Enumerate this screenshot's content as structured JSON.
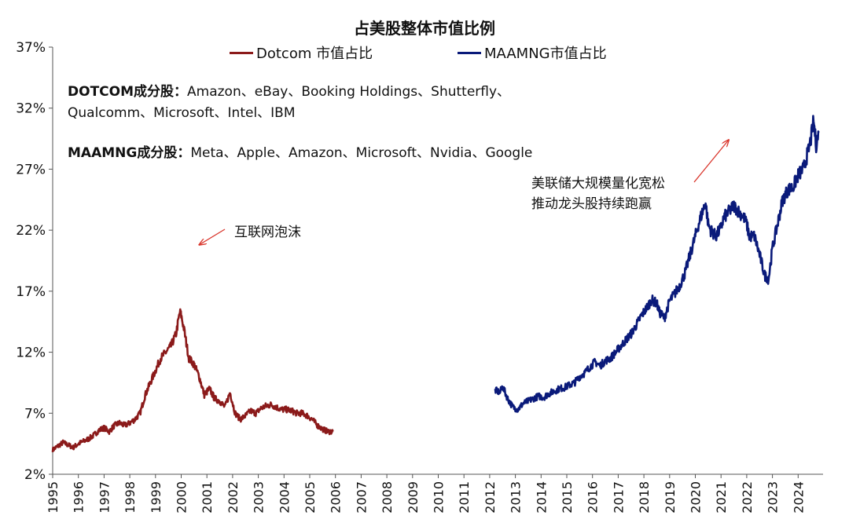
{
  "chart_data": {
    "type": "line",
    "title": "占美股整体市值比例",
    "ylim": [
      2,
      37
    ],
    "yticks": [
      "2%",
      "7%",
      "12%",
      "17%",
      "22%",
      "27%",
      "32%",
      "37%"
    ],
    "ytick_values": [
      2,
      7,
      12,
      17,
      22,
      27,
      32,
      37
    ],
    "xlim": [
      1995,
      2024.9
    ],
    "xticks": [
      "1995",
      "1996",
      "1997",
      "1998",
      "1999",
      "2000",
      "2001",
      "2002",
      "2003",
      "2004",
      "2005",
      "2006",
      "2007",
      "2008",
      "2009",
      "2010",
      "2011",
      "2012",
      "2013",
      "2014",
      "2015",
      "2016",
      "2017",
      "2018",
      "2019",
      "2020",
      "2021",
      "2022",
      "2023",
      "2024"
    ],
    "grid": false,
    "legend_position": "top",
    "series": [
      {
        "name": "Dotcom 市值占比",
        "color": "#8B1A1A",
        "x": [
          1995.0,
          1995.2,
          1995.4,
          1995.6,
          1995.8,
          1996.0,
          1996.2,
          1996.4,
          1996.6,
          1996.8,
          1997.0,
          1997.2,
          1997.4,
          1997.6,
          1997.8,
          1998.0,
          1998.2,
          1998.4,
          1998.6,
          1998.8,
          1999.0,
          1999.2,
          1999.4,
          1999.6,
          1999.8,
          1999.95,
          2000.0,
          2000.1,
          2000.3,
          2000.5,
          2000.7,
          2000.9,
          2001.1,
          2001.3,
          2001.5,
          2001.7,
          2001.9,
          2002.1,
          2002.3,
          2002.5,
          2002.7,
          2002.9,
          2003.1,
          2003.3,
          2003.5,
          2003.7,
          2003.9,
          2004.1,
          2004.3,
          2004.5,
          2004.7,
          2004.9,
          2005.1,
          2005.3,
          2005.5,
          2005.7,
          2005.9
        ],
        "values": [
          4.0,
          4.3,
          4.6,
          4.4,
          4.2,
          4.5,
          4.7,
          4.9,
          5.2,
          5.6,
          5.8,
          5.5,
          6.0,
          6.2,
          6.0,
          6.2,
          6.5,
          7.0,
          8.5,
          9.5,
          10.5,
          11.5,
          12.0,
          12.5,
          13.5,
          15.3,
          15.0,
          14.0,
          11.5,
          11.0,
          10.0,
          8.5,
          9.0,
          8.2,
          8.0,
          7.5,
          8.7,
          7.0,
          6.5,
          6.8,
          7.2,
          7.0,
          7.4,
          7.6,
          7.7,
          7.5,
          7.3,
          7.3,
          7.2,
          7.0,
          7.0,
          6.8,
          6.5,
          6.0,
          5.7,
          5.5,
          5.5
        ]
      },
      {
        "name": "MAAMNG市值占比",
        "color": "#0A1A7A",
        "x": [
          2012.2,
          2012.4,
          2012.5,
          2012.7,
          2012.9,
          2013.1,
          2013.3,
          2013.5,
          2013.7,
          2013.9,
          2014.1,
          2014.3,
          2014.5,
          2014.7,
          2014.9,
          2015.1,
          2015.3,
          2015.5,
          2015.7,
          2015.9,
          2016.1,
          2016.3,
          2016.5,
          2016.7,
          2016.9,
          2017.1,
          2017.3,
          2017.5,
          2017.7,
          2017.9,
          2018.1,
          2018.3,
          2018.5,
          2018.6,
          2018.8,
          2018.9,
          2019.0,
          2019.2,
          2019.4,
          2019.6,
          2019.8,
          2020.0,
          2020.1,
          2020.2,
          2020.4,
          2020.5,
          2020.6,
          2020.8,
          2021.0,
          2021.1,
          2021.3,
          2021.5,
          2021.7,
          2021.9,
          2022.0,
          2022.1,
          2022.3,
          2022.5,
          2022.7,
          2022.85,
          2023.0,
          2023.2,
          2023.4,
          2023.6,
          2023.8,
          2024.0,
          2024.2,
          2024.4,
          2024.5,
          2024.6,
          2024.7,
          2024.8
        ],
        "values": [
          8.9,
          8.7,
          9.2,
          8.2,
          7.5,
          7.3,
          7.8,
          8.0,
          8.2,
          8.4,
          8.3,
          8.6,
          8.8,
          9.0,
          9.1,
          9.3,
          9.5,
          10.0,
          10.3,
          10.8,
          11.2,
          10.9,
          11.3,
          11.5,
          12.0,
          12.5,
          13.0,
          13.5,
          14.2,
          15.0,
          15.6,
          16.3,
          16.0,
          15.3,
          14.8,
          15.5,
          16.2,
          16.8,
          17.5,
          18.5,
          20.0,
          21.5,
          22.3,
          23.0,
          24.3,
          22.5,
          22.0,
          21.5,
          22.2,
          23.0,
          23.5,
          24.0,
          23.5,
          23.0,
          22.5,
          21.5,
          21.5,
          20.0,
          18.3,
          18.0,
          20.5,
          22.5,
          24.5,
          25.3,
          25.5,
          26.5,
          27.0,
          28.5,
          29.5,
          31.0,
          29.0,
          30.0
        ]
      }
    ],
    "annotations": [
      {
        "text": "互联网泡沫",
        "arrow_to": [
          2000.7,
          20.8
        ]
      },
      {
        "text_lines": [
          "美联储大规模量化宽松",
          "推动龙头股持续跑赢"
        ],
        "arrow_to": [
          2021.3,
          29.4
        ]
      }
    ],
    "components_notes": [
      {
        "label": "DOTCOM成分股：",
        "lines": [
          "Amazon、eBay、Booking Holdings、Shutterfly、",
          "Qualcomm、Microsoft、Intel、IBM"
        ]
      },
      {
        "label": "MAAMNG成分股：",
        "lines": [
          "Meta、Apple、Amazon、Microsoft、Nvidia、Google"
        ]
      }
    ]
  }
}
